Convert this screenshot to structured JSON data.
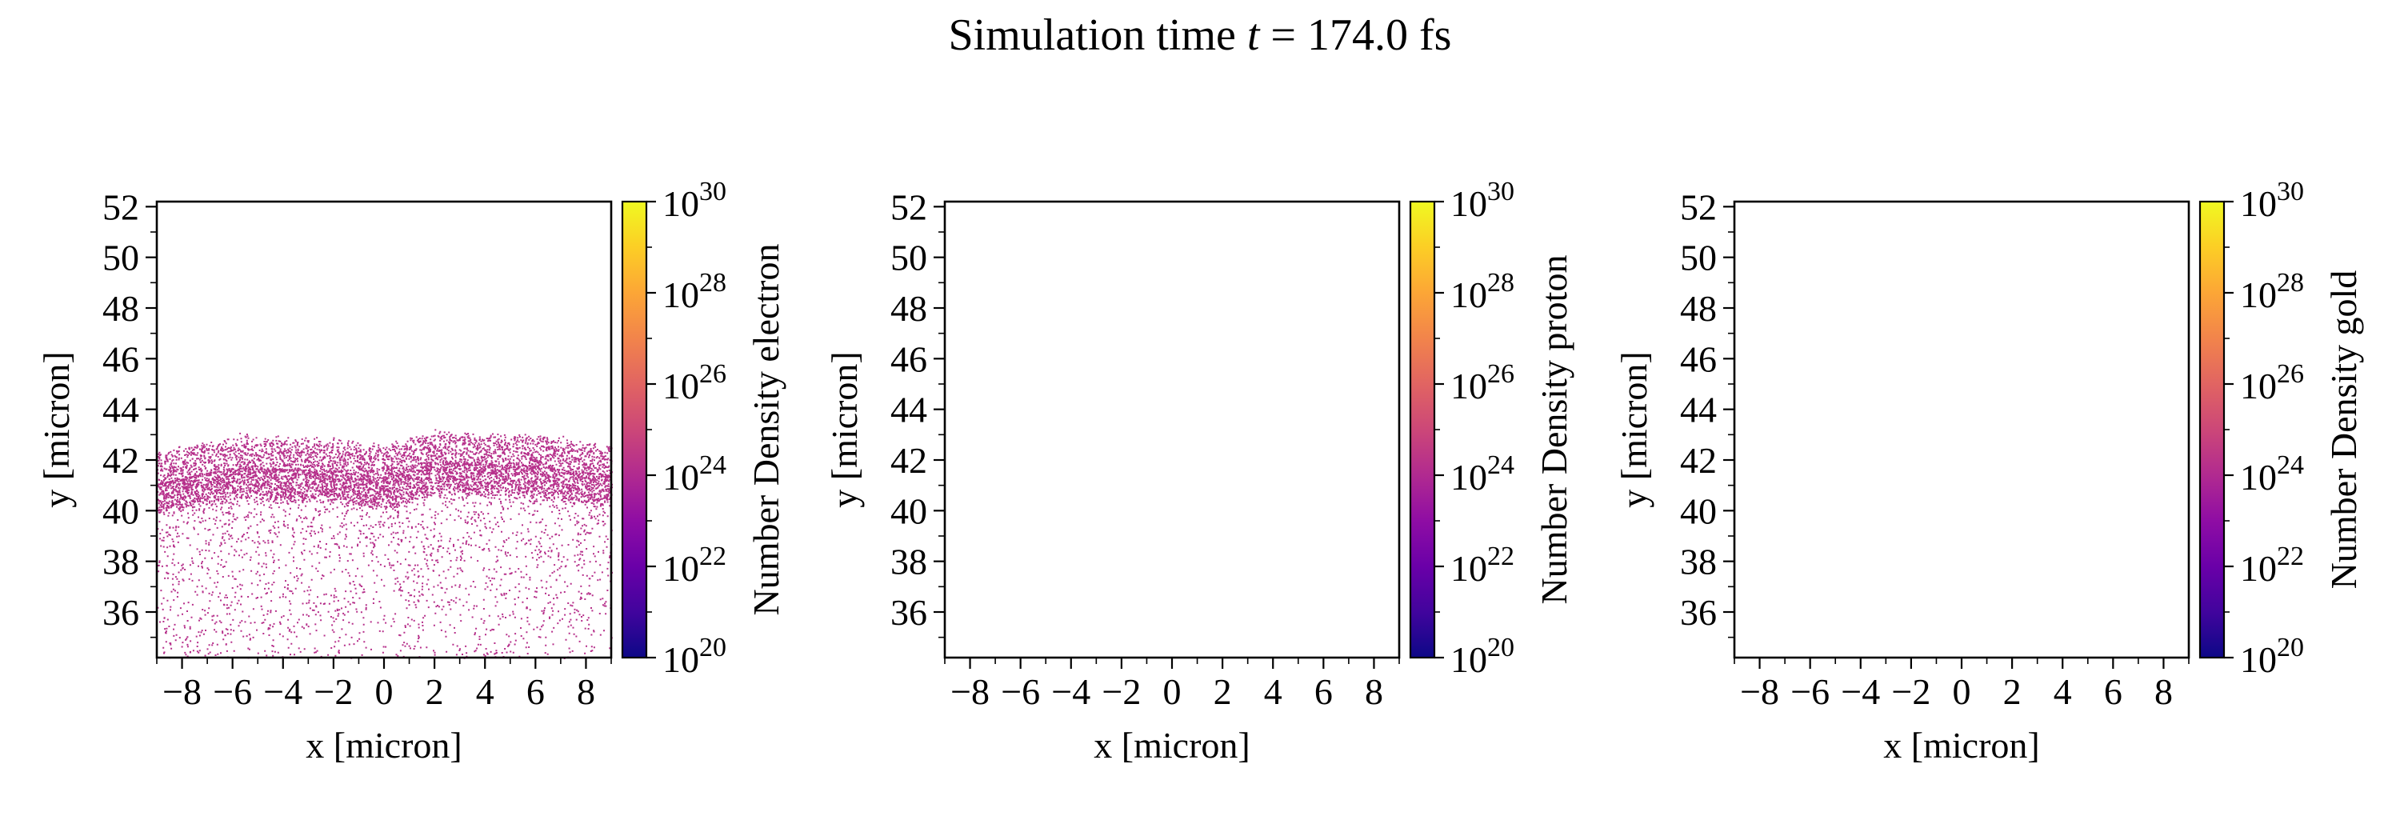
{
  "figure": {
    "title_prefix": "Simulation time ",
    "title_var": "t",
    "title_value": " = 174.0 fs"
  },
  "chart_data": [
    {
      "type": "heatmap",
      "species": "electron",
      "xlabel": "x [micron]",
      "ylabel": "y [micron]",
      "xlim": [
        -9,
        9
      ],
      "ylim": [
        34.2,
        52.2
      ],
      "xticks": [
        -8,
        -6,
        -4,
        -2,
        0,
        2,
        4,
        6,
        8
      ],
      "yticks": [
        36,
        38,
        40,
        42,
        44,
        46,
        48,
        50,
        52
      ],
      "colorbar": {
        "label": "Number Density electron",
        "scale": "log",
        "min_exp": 20,
        "max_exp": 30,
        "tick_exps": [
          20,
          22,
          24,
          26,
          28,
          30
        ],
        "colormap": "plasma"
      },
      "density_field": {
        "front_y_at_x": [
          [
            -9,
            42.3
          ],
          [
            -6,
            42.9
          ],
          [
            -2,
            42.8
          ],
          [
            0,
            42.5
          ],
          [
            2,
            43.1
          ],
          [
            6,
            43.0
          ],
          [
            9,
            42.6
          ]
        ],
        "dense_layer_thickness": 2.4,
        "sparse_tail_down_to": 34.2,
        "dominant_log_density": 24
      }
    },
    {
      "type": "heatmap",
      "species": "proton",
      "xlabel": "x [micron]",
      "ylabel": "y [micron]",
      "xlim": [
        -9,
        9
      ],
      "ylim": [
        34.2,
        52.2
      ],
      "xticks": [
        -8,
        -6,
        -4,
        -2,
        0,
        2,
        4,
        6,
        8
      ],
      "yticks": [
        36,
        38,
        40,
        42,
        44,
        46,
        48,
        50,
        52
      ],
      "colorbar": {
        "label": "Number Density proton",
        "scale": "log",
        "min_exp": 20,
        "max_exp": 30,
        "tick_exps": [
          20,
          22,
          24,
          26,
          28,
          30
        ],
        "colormap": "plasma"
      },
      "density_field": null
    },
    {
      "type": "heatmap",
      "species": "gold",
      "xlabel": "x [micron]",
      "ylabel": "y [micron]",
      "xlim": [
        -9,
        9
      ],
      "ylim": [
        34.2,
        52.2
      ],
      "xticks": [
        -8,
        -6,
        -4,
        -2,
        0,
        2,
        4,
        6,
        8
      ],
      "yticks": [
        36,
        38,
        40,
        42,
        44,
        46,
        48,
        50,
        52
      ],
      "colorbar": {
        "label": "Number Density gold",
        "scale": "log",
        "min_exp": 20,
        "max_exp": 30,
        "tick_exps": [
          20,
          22,
          24,
          26,
          28,
          30
        ],
        "colormap": "plasma"
      },
      "density_field": null
    }
  ]
}
